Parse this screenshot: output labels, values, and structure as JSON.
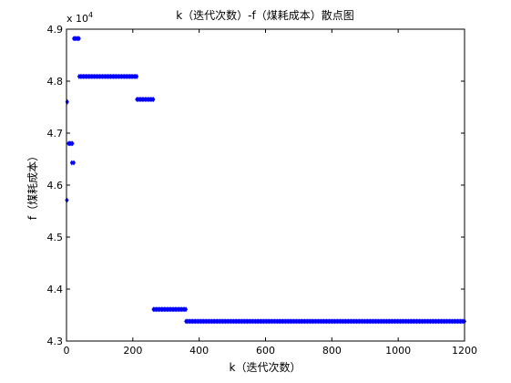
{
  "chart_data": {
    "type": "scatter",
    "title": "k（迭代次数）-f（煤耗成本）散点图",
    "xlabel": "k（迭代次数）",
    "ylabel": "f（煤耗成本）",
    "xlim": [
      0,
      1200
    ],
    "ylim": [
      4.3,
      4.9
    ],
    "y_scale_note": "x 10^4",
    "y_multiplier_base": "x 10",
    "y_multiplier_exp": "4",
    "x_ticks": [
      "0",
      "200",
      "400",
      "600",
      "800",
      "1000",
      "1200"
    ],
    "y_ticks": [
      "4.3",
      "4.4",
      "4.5",
      "4.6",
      "4.7",
      "4.8",
      "4.9"
    ],
    "grid": false,
    "marker_color": "#0000FF",
    "series": [
      {
        "segments": [
          {
            "x_start": 1,
            "x_end": 1,
            "y": 4.571
          },
          {
            "x_start": 2,
            "x_end": 2,
            "y": 4.76
          },
          {
            "x_start": 6,
            "x_end": 18,
            "y": 4.68
          },
          {
            "x_start": 16,
            "x_end": 22,
            "y": 4.643
          },
          {
            "x_start": 22,
            "x_end": 38,
            "y": 4.882
          },
          {
            "x_start": 38,
            "x_end": 212,
            "y": 4.809
          },
          {
            "x_start": 212,
            "x_end": 262,
            "y": 4.765
          },
          {
            "x_start": 262,
            "x_end": 360,
            "y": 4.361
          },
          {
            "x_start": 360,
            "x_end": 1200,
            "y": 4.338
          }
        ]
      }
    ]
  }
}
